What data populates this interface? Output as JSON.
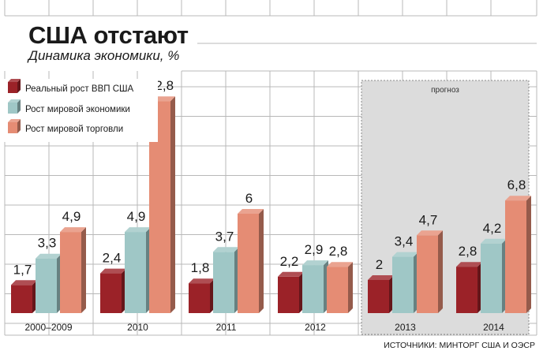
{
  "header": {
    "title": "США отстают",
    "subtitle": "Динамика экономики, %"
  },
  "forecast_label": "прогноз",
  "source": "ИСТОЧНИКИ: МИНТОРГ США И ОЭСР",
  "colors": {
    "gdp_usa": "#9b2228",
    "world_economy": "#9fc7c6",
    "world_trade": "#e58c74",
    "forecast_bg": "#dcdcdc",
    "grid": "#b8b8b8"
  },
  "chart_data": {
    "type": "bar",
    "title": "США отстают",
    "subtitle": "Динамика экономики, %",
    "categories": [
      "2000–2009",
      "2010",
      "2011",
      "2012",
      "2013",
      "2014"
    ],
    "series": [
      {
        "name": "Реальный рост ВВП США",
        "values": [
          1.7,
          2.4,
          1.8,
          2.2,
          2,
          2.8
        ],
        "labels": [
          "1,7",
          "2,4",
          "1,8",
          "2,2",
          "2",
          "2,8"
        ]
      },
      {
        "name": "Рост мировой экономики",
        "values": [
          3.3,
          4.9,
          3.7,
          2.9,
          3.4,
          4.2
        ],
        "labels": [
          "3,3",
          "4,9",
          "3,7",
          "2,9",
          "3,4",
          "4,2"
        ]
      },
      {
        "name": "Рост мировой торговли",
        "values": [
          4.9,
          12.8,
          6,
          2.8,
          4.7,
          6.8
        ],
        "labels": [
          "4,9",
          "12,8",
          "6",
          "2,8",
          "4,7",
          "6,8"
        ]
      }
    ],
    "forecast_categories": [
      "2013",
      "2014"
    ],
    "ylim": [
      0,
      14
    ],
    "grid": true,
    "legend": "top-left"
  }
}
